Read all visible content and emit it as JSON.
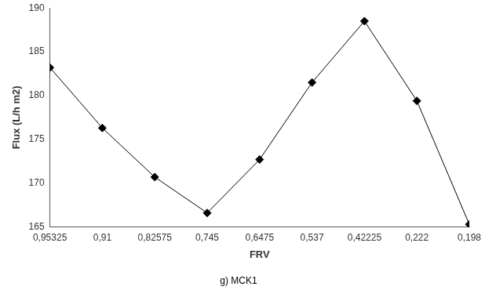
{
  "chart_data": {
    "type": "line",
    "title": "g) MCK1",
    "x_label": "FRV",
    "y_label": "Flux (L/h m2)",
    "categories": [
      "0,95325",
      "0,91",
      "0,82575",
      "0,745",
      "0,6475",
      "0,537",
      "0,42225",
      "0,222",
      "0,198"
    ],
    "values": [
      183.2,
      176.3,
      170.7,
      166.6,
      172.7,
      181.5,
      188.5,
      179.4,
      165.3
    ],
    "color": "#000000",
    "marker": "diamond",
    "line_style": "solid",
    "ylim": [
      165,
      190
    ],
    "yticks": [
      165,
      170,
      175,
      180,
      185,
      190
    ],
    "grid": false
  }
}
